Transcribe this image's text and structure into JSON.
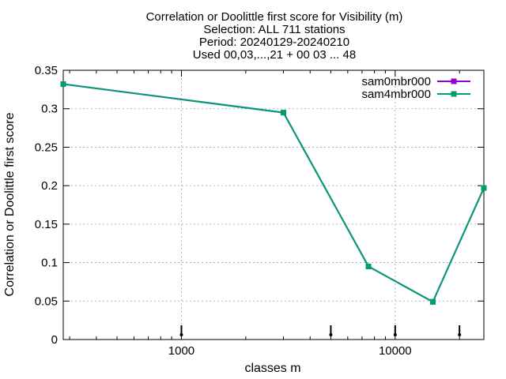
{
  "chart_data": {
    "type": "line",
    "title_lines": [
      "Correlation or Doolittle first score  for Visibility (m)",
      "Selection: ALL    711 stations",
      "Period: 20240129-20240210",
      "Used 00,03,...,21 + 00 03 ... 48"
    ],
    "xlabel": "classes m",
    "ylabel": "Correlation or Doolittle first score",
    "x_scale": "log",
    "xlim": [
      280,
      26000
    ],
    "ylim": [
      0,
      0.35
    ],
    "x_major_ticks": [
      1000,
      10000
    ],
    "x_tick_labels": [
      "1000",
      "10000"
    ],
    "y_ticks": [
      0,
      0.05,
      0.1,
      0.15,
      0.2,
      0.25,
      0.3,
      0.35
    ],
    "y_tick_labels": [
      "0",
      "0.05",
      "0.1",
      "0.15",
      "0.2",
      "0.25",
      "0.3",
      "0.35"
    ],
    "grid": true,
    "legend_position": "top-right",
    "bottom_markers_x": [
      1000,
      5000,
      10000,
      20000
    ],
    "series": [
      {
        "name": "sam0mbr000",
        "color": "#9400d3",
        "x": [
          280,
          3000,
          7500,
          15000,
          26000
        ],
        "values": [
          0.332,
          0.295,
          0.095,
          0.049,
          0.197
        ]
      },
      {
        "name": "sam4mbr000",
        "color": "#009e73",
        "x": [
          280,
          3000,
          7500,
          15000,
          26000
        ],
        "values": [
          0.332,
          0.295,
          0.095,
          0.049,
          0.197
        ]
      }
    ]
  }
}
